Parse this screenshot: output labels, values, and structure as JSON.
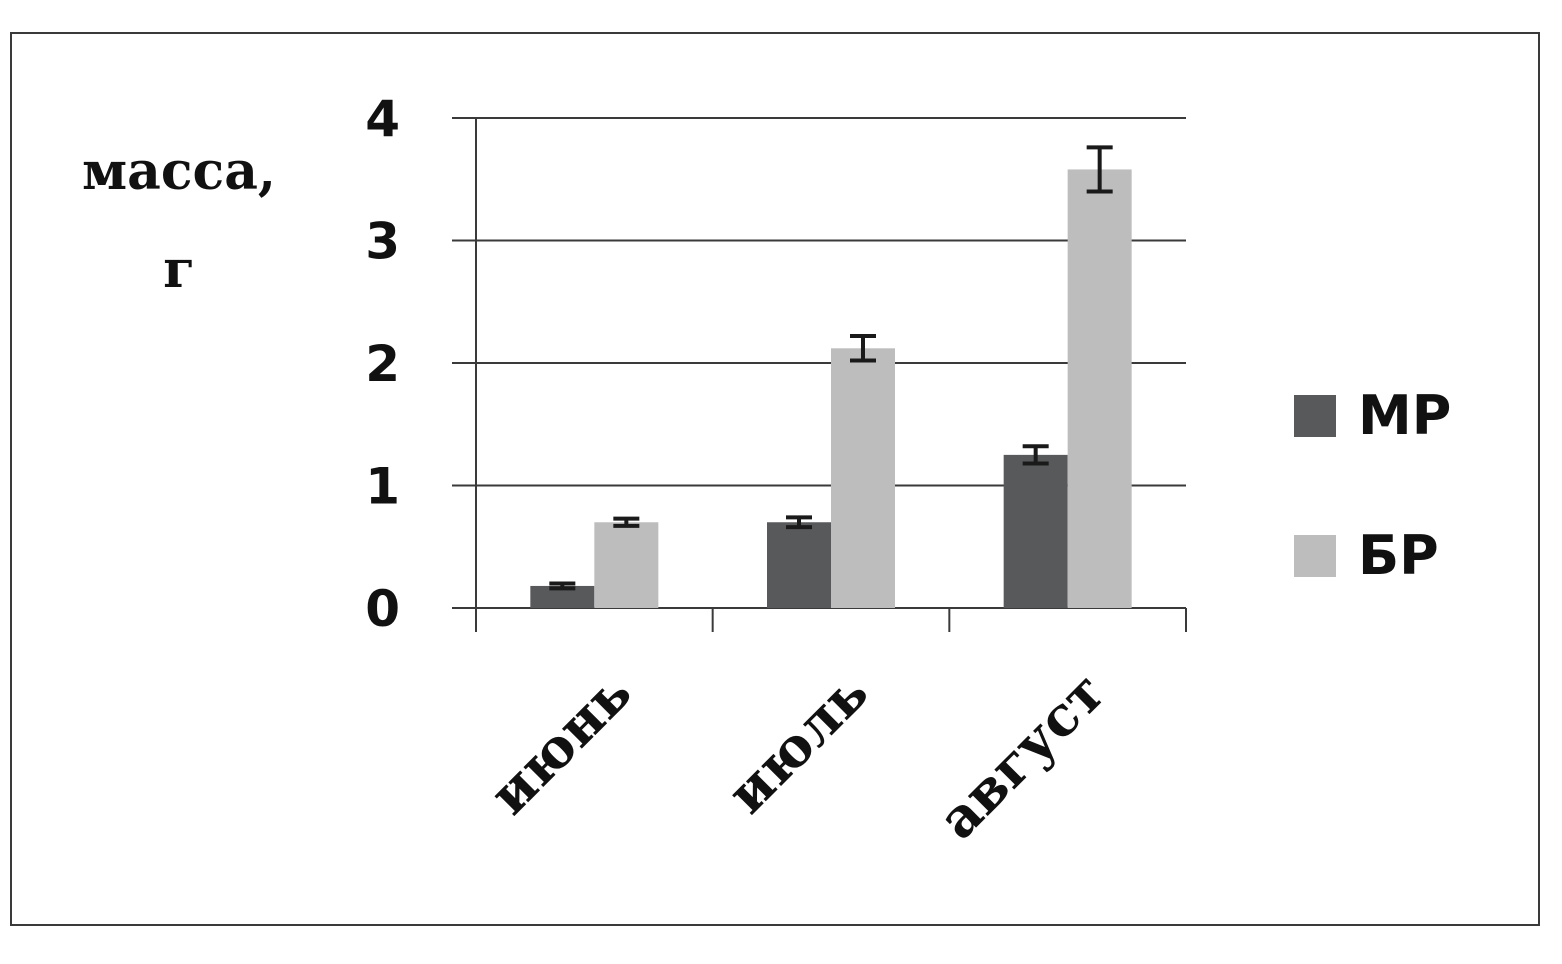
{
  "chart_data": {
    "type": "bar",
    "ylabel_lines": [
      "масса,",
      "г"
    ],
    "categories": [
      "июнь",
      "июль",
      "август"
    ],
    "series": [
      {
        "name": "МР",
        "color": "#58595b",
        "values": [
          0.18,
          0.7,
          1.25
        ],
        "errors": [
          0.02,
          0.04,
          0.07
        ]
      },
      {
        "name": "БР",
        "color": "#bdbdbd",
        "values": [
          0.7,
          2.12,
          3.58
        ],
        "errors": [
          0.03,
          0.1,
          0.18
        ]
      }
    ],
    "ylim": [
      0,
      4
    ],
    "yticks": [
      0,
      1,
      2,
      3,
      4
    ],
    "grid": true,
    "legend_position": "right"
  }
}
